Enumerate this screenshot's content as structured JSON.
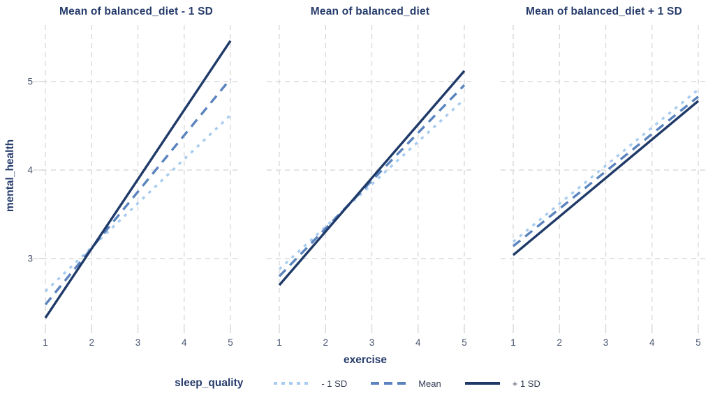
{
  "chart_data": {
    "type": "line",
    "xlabel": "exercise",
    "ylabel": "mental_health",
    "x_ticks": [
      1,
      2,
      3,
      4,
      5
    ],
    "y_ticks": [
      3,
      4,
      5
    ],
    "xlim": [
      1,
      5
    ],
    "ylim": [
      2.2,
      5.6
    ],
    "grid": "dashed gridlines on both axes",
    "text_color": "#263C6B",
    "tick_label_color": "#47536E",
    "grid_color": "#DADADA",
    "legend": {
      "title": "sleep_quality",
      "position": "bottom",
      "entries": [
        {
          "label": "- 1 SD",
          "style": "dotted",
          "color": "#A8CCF0"
        },
        {
          "label": "Mean",
          "style": "dashed",
          "color": "#5B84BE"
        },
        {
          "label": "+ 1 SD",
          "style": "solid",
          "color": "#1F3A68"
        }
      ]
    },
    "facets": [
      {
        "title": "Mean of balanced_diet - 1 SD",
        "series": [
          {
            "name": "- 1 SD",
            "x": [
              1,
              5
            ],
            "y": [
              2.63,
              4.62
            ]
          },
          {
            "name": "Mean",
            "x": [
              1,
              5
            ],
            "y": [
              2.48,
              5.03
            ]
          },
          {
            "name": "+ 1 SD",
            "x": [
              1,
              5
            ],
            "y": [
              2.33,
              5.46
            ]
          }
        ]
      },
      {
        "title": "Mean of balanced_diet",
        "series": [
          {
            "name": "- 1 SD",
            "x": [
              1,
              5
            ],
            "y": [
              2.88,
              4.8
            ]
          },
          {
            "name": "Mean",
            "x": [
              1,
              5
            ],
            "y": [
              2.8,
              4.96
            ]
          },
          {
            "name": "+ 1 SD",
            "x": [
              1,
              5
            ],
            "y": [
              2.7,
              5.12
            ]
          }
        ]
      },
      {
        "title": "Mean of balanced_diet + 1 SD",
        "series": [
          {
            "name": "- 1 SD",
            "x": [
              1,
              5
            ],
            "y": [
              3.19,
              4.91
            ]
          },
          {
            "name": "Mean",
            "x": [
              1,
              5
            ],
            "y": [
              3.14,
              4.83
            ]
          },
          {
            "name": "+ 1 SD",
            "x": [
              1,
              5
            ],
            "y": [
              3.04,
              4.78
            ]
          }
        ]
      }
    ]
  }
}
